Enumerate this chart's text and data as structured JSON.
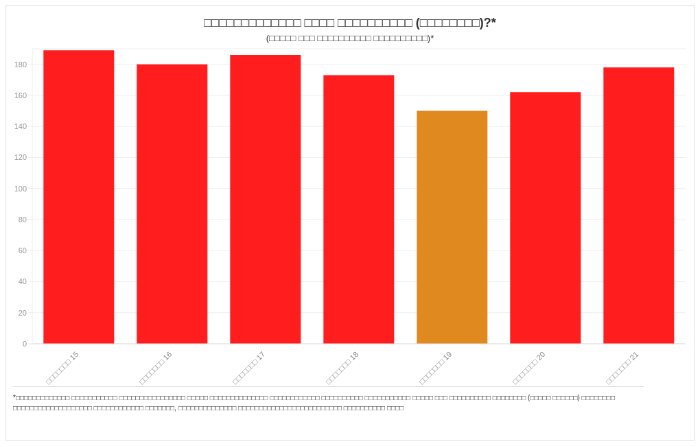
{
  "chart_data": {
    "type": "bar",
    "title": "□□□□□□□□□□□□□ □□□□ □□□□□□□□□□ (□□□□□□□□)?*",
    "subtitle": "(□□□□□ □□□ □□□□□□□□□□ □□□□□□□□□□)*",
    "categories": [
      "□□□□□□□ 15",
      "□□□□□□□ 16",
      "□□□□□□□ 17",
      "□□□□□□□ 18",
      "□□□□□□□ 19",
      "□□□□□□□ 20",
      "□□□□□□□ 21"
    ],
    "values": [
      189,
      180,
      186,
      173,
      150,
      162,
      178
    ],
    "colors": [
      "#ff1d1d",
      "#ff1d1d",
      "#ff1d1d",
      "#ff1d1d",
      "#e0891f",
      "#ff1d1d",
      "#ff1d1d"
    ],
    "ylim": [
      0,
      190
    ],
    "yticks": [
      0,
      20,
      40,
      60,
      80,
      100,
      120,
      140,
      160,
      180
    ],
    "grid": "y",
    "annotations": [
      "*□□□□□□□□□□□□□ □□□□□□□□□□□ □□□□□□□□□□□□□□□□ □□□□□ □□□□□□□□□□□□□□ □□□□□□□□□□□□ □□□□□□□□□□ □□□□□□□□□□□ □□□□□ □□□ □□□□□□□□□□ □□□□□□□□ (□□□□□ □□□□□□) □□□□□□□□ □□□□□□□□□□□□□□□□□□□ □□□□□□□□□□□□ □□□□□□□, □□□□□□□□□□□□□□ □□□□□□□□□□□□□□□□□□□□□□□□□ □□□□□□□□□□ □□□□"
    ]
  }
}
